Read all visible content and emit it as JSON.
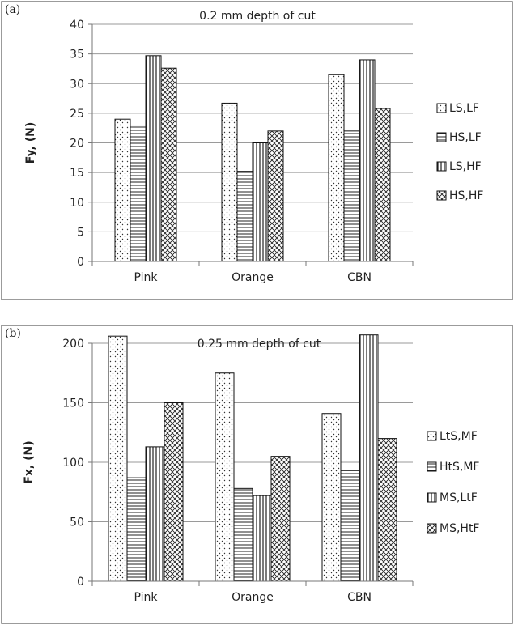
{
  "chart_data": [
    {
      "type": "bar",
      "panel_label": "(a)",
      "title": "0.2 mm depth of cut",
      "xlabel": "",
      "ylabel": "Fy, (N)",
      "categories": [
        "Pink",
        "Orange",
        "CBN"
      ],
      "ylim": [
        0,
        40
      ],
      "yticks": [
        "0",
        "5",
        "10",
        "15",
        "20",
        "25",
        "30",
        "35",
        "40"
      ],
      "grid": true,
      "legend_position": "right",
      "series": [
        {
          "name": "LS,LF",
          "pattern": "dots",
          "values": [
            24,
            26.7,
            31.5
          ]
        },
        {
          "name": "HS,LF",
          "pattern": "hlines",
          "values": [
            23,
            15.2,
            22
          ]
        },
        {
          "name": "LS,HF",
          "pattern": "vlines",
          "values": [
            34.7,
            20,
            34
          ]
        },
        {
          "name": "HS,HF",
          "pattern": "cross",
          "values": [
            32.6,
            22,
            25.8
          ]
        }
      ]
    },
    {
      "type": "bar",
      "panel_label": "(b)",
      "title": "0.25 mm depth of cut",
      "xlabel": "",
      "ylabel": "Fx, (N)",
      "categories": [
        "Pink",
        "Orange",
        "CBN"
      ],
      "ylim": [
        0,
        200
      ],
      "yticks": [
        "0",
        "50",
        "100",
        "150",
        "200"
      ],
      "grid": true,
      "legend_position": "right",
      "series": [
        {
          "name": "LtS,MF",
          "pattern": "dots",
          "values": [
            206,
            175,
            141
          ]
        },
        {
          "name": "HtS,MF",
          "pattern": "hlines",
          "values": [
            87,
            78,
            93
          ]
        },
        {
          "name": "MS,LtF",
          "pattern": "vlines",
          "values": [
            113,
            72,
            207
          ]
        },
        {
          "name": "MS,HtF",
          "pattern": "cross",
          "values": [
            150,
            105,
            120
          ]
        }
      ]
    }
  ]
}
